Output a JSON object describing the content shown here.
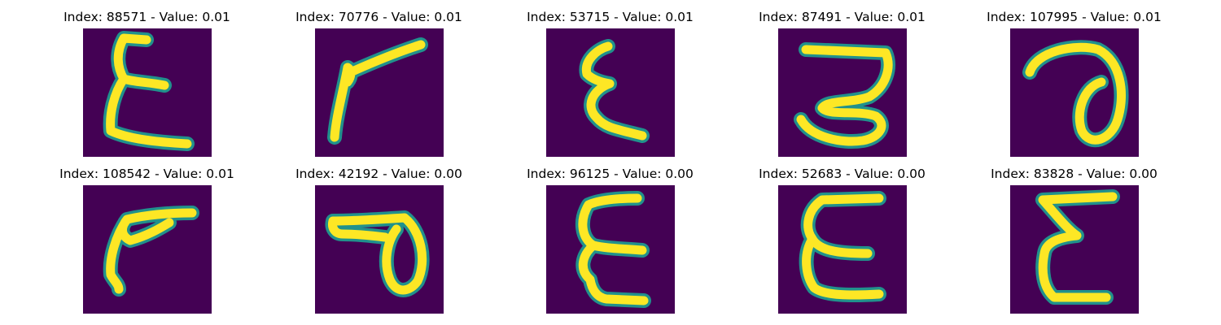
{
  "figure": {
    "panels": [
      {
        "title": "Index: 88571 - Value: 0.01",
        "glyph": "handwritten-epsilon-like-character"
      },
      {
        "title": "Index: 70776 - Value: 0.01",
        "glyph": "handwritten-angular-stroke"
      },
      {
        "title": "Index: 53715 - Value: 0.01",
        "glyph": "handwritten-epsilon-like-character"
      },
      {
        "title": "Index: 87491 - Value: 0.01",
        "glyph": "handwritten-three-like-character"
      },
      {
        "title": "Index: 107995 - Value: 0.01",
        "glyph": "handwritten-loop-character"
      },
      {
        "title": "Index: 108542 - Value: 0.01",
        "glyph": "handwritten-angular-stroke"
      },
      {
        "title": "Index: 42192 - Value: 0.00",
        "glyph": "handwritten-loop-character"
      },
      {
        "title": "Index: 96125 - Value: 0.00",
        "glyph": "handwritten-epsilon-like-character"
      },
      {
        "title": "Index: 52683 - Value: 0.00",
        "glyph": "handwritten-epsilon-like-character"
      },
      {
        "title": "Index: 83828 - Value: 0.00",
        "glyph": "handwritten-epsilon-like-character"
      }
    ],
    "colors": {
      "background": "#440154",
      "edge": "#21918c",
      "stroke": "#fde725"
    }
  }
}
